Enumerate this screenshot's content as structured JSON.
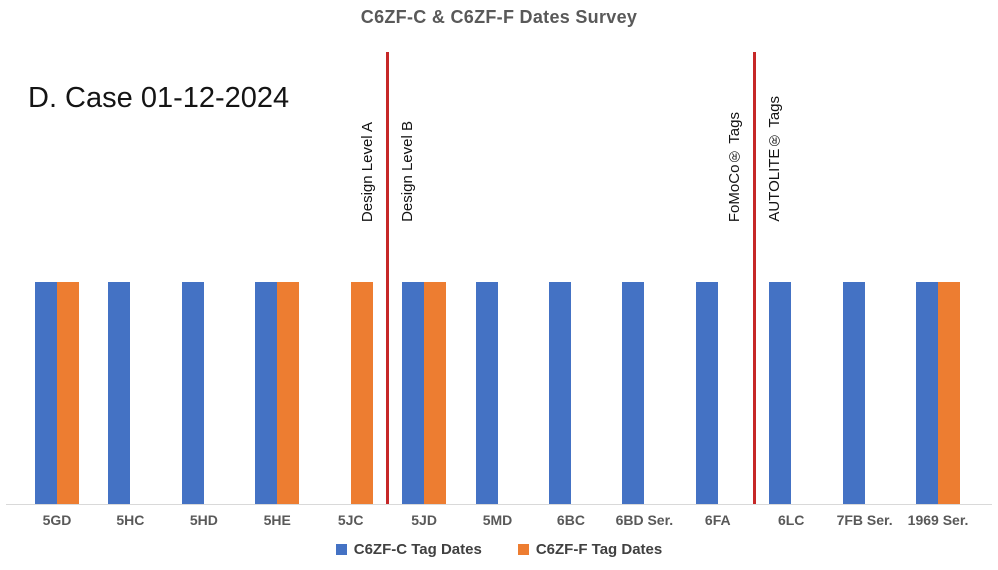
{
  "page": {
    "annotation": "D. Case 01-12-2024"
  },
  "chart_data": {
    "type": "bar",
    "title": "C6ZF-C & C6ZF-F Dates Survey",
    "title_color": "#595959",
    "categories": [
      "5GD",
      "5HC",
      "5HD",
      "5HE",
      "5JC",
      "5JD",
      "5MD",
      "6BC",
      "6BD Ser.",
      "6FA",
      "6LC",
      "7FB Ser.",
      "1969 Ser."
    ],
    "series": [
      {
        "name": "C6ZF-C Tag Dates",
        "color": "#4472C4",
        "values": [
          1,
          1,
          1,
          1,
          0,
          1,
          1,
          1,
          1,
          1,
          1,
          1,
          1
        ]
      },
      {
        "name": "C6ZF-F Tag Dates",
        "color": "#ED7D31",
        "values": [
          1,
          0,
          0,
          1,
          1,
          1,
          0,
          0,
          0,
          0,
          0,
          0,
          1
        ]
      }
    ],
    "value_meaning": "1 = tag dates present for this code, 0 = absent; all bars equal height (presence chart)",
    "ylim": [
      0,
      1
    ],
    "y_axis_visible": false,
    "grid": false,
    "legend_position": "bottom",
    "axis_line_color": "#d9d9d9",
    "dividers": [
      {
        "between": [
          "5JC",
          "5JD"
        ],
        "color": "#C62828",
        "label_left": "Design Level A",
        "label_right": "Design Level B"
      },
      {
        "between": [
          "6FA",
          "6LC"
        ],
        "color": "#C62828",
        "label_left": "FoMoCo® Tags",
        "label_right": "AUTOLITE® Tags"
      }
    ]
  }
}
